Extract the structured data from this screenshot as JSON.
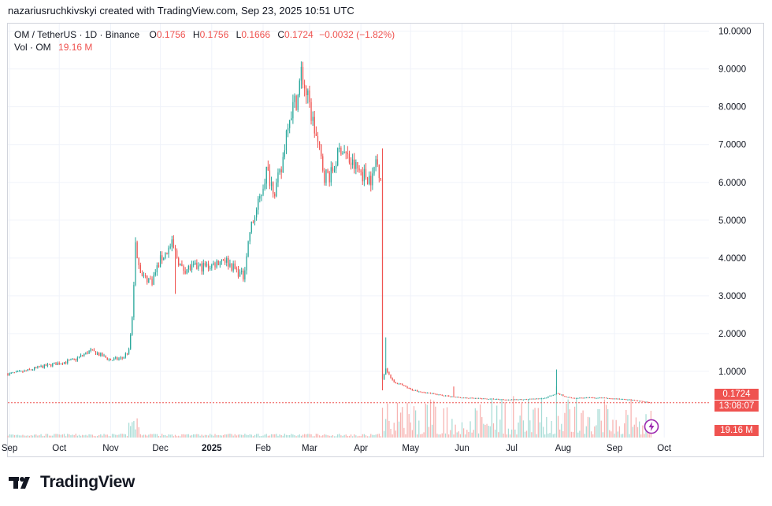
{
  "header": {
    "credit": "nazariusruchkivskyi created with TradingView.com, Sep 23, 2025 10:51 UTC"
  },
  "legend": {
    "symbol": "OM / TetherUS · 1D · Binance",
    "open_label": "O",
    "open": "0.1756",
    "high_label": "H",
    "high": "0.1756",
    "low_label": "L",
    "low": "0.1666",
    "close_label": "C",
    "close": "0.1724",
    "change": "−0.0032 (−1.82%)",
    "volume_label": "Vol · OM",
    "volume": "19.16 M"
  },
  "badges": {
    "last_price": "0.1724",
    "countdown": "13:08:07",
    "volume": "19.16 M"
  },
  "brand": {
    "name": "TradingView"
  },
  "colors": {
    "up": "#26a69a",
    "down": "#ef5350",
    "grid": "#f0f3fa",
    "axis_text": "#131722",
    "last_price_line": "#ef5350"
  },
  "chart_data": {
    "type": "candlestick",
    "title": "OM / TetherUS · 1D · Binance",
    "y_axis": {
      "ticks": [
        "1.0000",
        "2.0000",
        "3.0000",
        "4.0000",
        "5.0000",
        "6.0000",
        "7.0000",
        "8.0000",
        "9.0000",
        "10.0000"
      ],
      "tick_values": [
        1,
        2,
        3,
        4,
        5,
        6,
        7,
        8,
        9,
        10
      ],
      "range": [
        -0.75,
        10.2
      ],
      "position": "right"
    },
    "x_axis": {
      "labels": [
        "Sep",
        "Oct",
        "Nov",
        "Dec",
        "2025",
        "Feb",
        "Mar",
        "Apr",
        "May",
        "Jun",
        "Jul",
        "Aug",
        "Sep",
        "Oct"
      ],
      "label_dates": [
        "2024-09-01",
        "2024-10-01",
        "2024-11-01",
        "2024-12-01",
        "2025-01-01",
        "2025-02-01",
        "2025-03-01",
        "2025-04-01",
        "2025-05-01",
        "2025-06-01",
        "2025-07-01",
        "2025-08-01",
        "2025-09-01",
        "2025-10-01"
      ],
      "range": [
        "2024-08-31",
        "2025-10-28"
      ]
    },
    "grid": true,
    "last_price": 0.1724,
    "close_path": [
      [
        "2024-08-31",
        0.93
      ],
      [
        "2024-09-10",
        1.0
      ],
      [
        "2024-09-20",
        1.12
      ],
      [
        "2024-10-01",
        1.22
      ],
      [
        "2024-10-10",
        1.3
      ],
      [
        "2024-10-20",
        1.55
      ],
      [
        "2024-10-25",
        1.45
      ],
      [
        "2024-11-01",
        1.3
      ],
      [
        "2024-11-08",
        1.35
      ],
      [
        "2024-11-12",
        1.55
      ],
      [
        "2024-11-14",
        2.4
      ],
      [
        "2024-11-16",
        4.3
      ],
      [
        "2024-11-20",
        3.5
      ],
      [
        "2024-11-26",
        3.4
      ],
      [
        "2024-12-01",
        3.95
      ],
      [
        "2024-12-08",
        4.35
      ],
      [
        "2024-12-14",
        3.7
      ],
      [
        "2024-12-22",
        3.75
      ],
      [
        "2025-01-01",
        3.8
      ],
      [
        "2025-01-08",
        4.0
      ],
      [
        "2025-01-14",
        3.75
      ],
      [
        "2025-01-20",
        3.5
      ],
      [
        "2025-01-24",
        4.7
      ],
      [
        "2025-01-29",
        5.4
      ],
      [
        "2025-02-03",
        6.3
      ],
      [
        "2025-02-08",
        5.8
      ],
      [
        "2025-02-12",
        6.3
      ],
      [
        "2025-02-16",
        7.7
      ],
      [
        "2025-02-22",
        8.3
      ],
      [
        "2025-02-24",
        8.9
      ],
      [
        "2025-03-01",
        8.0
      ],
      [
        "2025-03-06",
        7.0
      ],
      [
        "2025-03-10",
        6.2
      ],
      [
        "2025-03-14",
        6.2
      ],
      [
        "2025-03-20",
        6.95
      ],
      [
        "2025-03-26",
        6.5
      ],
      [
        "2025-04-03",
        6.2
      ],
      [
        "2025-04-08",
        6.1
      ],
      [
        "2025-04-10",
        6.6
      ],
      [
        "2025-04-13",
        6.2
      ],
      [
        "2025-04-14",
        0.8
      ],
      [
        "2025-04-16",
        1.1
      ],
      [
        "2025-04-20",
        0.75
      ],
      [
        "2025-05-01",
        0.52
      ],
      [
        "2025-05-15",
        0.4
      ],
      [
        "2025-06-01",
        0.3
      ],
      [
        "2025-07-01",
        0.25
      ],
      [
        "2025-07-20",
        0.28
      ],
      [
        "2025-07-28",
        0.42
      ],
      [
        "2025-08-05",
        0.3
      ],
      [
        "2025-08-25",
        0.3
      ],
      [
        "2025-09-10",
        0.25
      ],
      [
        "2025-09-23",
        0.17
      ]
    ],
    "notable_wicks": [
      {
        "date": "2024-11-16",
        "high": 4.55
      },
      {
        "date": "2024-12-09",
        "high": 4.6
      },
      {
        "date": "2024-12-10",
        "low": 3.05
      },
      {
        "date": "2025-02-24",
        "high": 9.2
      },
      {
        "date": "2025-04-14",
        "high": 6.9,
        "low": 0.5
      },
      {
        "date": "2025-04-16",
        "high": 1.9
      },
      {
        "date": "2025-07-28",
        "high": 1.05
      },
      {
        "date": "2025-05-27",
        "high": 0.6
      }
    ],
    "volume": {
      "baseline_period": [
        "2024-08-31",
        "2025-04-13"
      ],
      "baseline_relative_height": 0.05,
      "spike_period": [
        "2024-11-12",
        "2024-11-18"
      ],
      "spike_relative_height": 0.4,
      "crash_period": [
        "2025-04-14",
        "2025-09-23"
      ],
      "crash_relative_height": 0.75,
      "peak_date": "2025-07-28",
      "peak_relative_height": 1.0
    }
  }
}
